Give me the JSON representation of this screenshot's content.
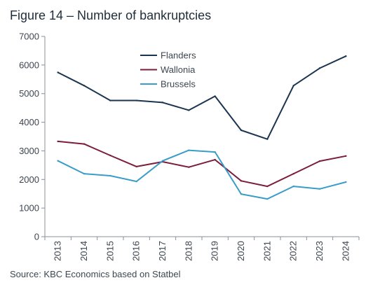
{
  "title": "Figure 14 – Number of bankruptcies",
  "source": "Source: KBC Economics based on Statbel",
  "chart_data": {
    "type": "line",
    "title": "Figure 14 – Number of bankruptcies",
    "xlabel": "",
    "ylabel": "",
    "categories": [
      "2013",
      "2014",
      "2015",
      "2016",
      "2017",
      "2018",
      "2019",
      "2020",
      "2021",
      "2022",
      "2023",
      "2024"
    ],
    "ylim": [
      0,
      7000
    ],
    "yticks": [
      0,
      1000,
      2000,
      3000,
      4000,
      5000,
      6000,
      7000
    ],
    "grid": false,
    "legend_position": "top-center",
    "series": [
      {
        "name": "Flanders",
        "color": "#1b3550",
        "values": [
          5740,
          5280,
          4760,
          4760,
          4690,
          4420,
          4910,
          3720,
          3410,
          5280,
          5890,
          6310
        ]
      },
      {
        "name": "Wallonia",
        "color": "#7a1e3a",
        "values": [
          3330,
          3240,
          2840,
          2450,
          2620,
          2430,
          2690,
          1950,
          1760,
          2200,
          2640,
          2820
        ]
      },
      {
        "name": "Brussels",
        "color": "#3a9cc9",
        "values": [
          2650,
          2200,
          2130,
          1930,
          2650,
          3020,
          2960,
          1490,
          1320,
          1760,
          1670,
          1910
        ]
      }
    ]
  }
}
